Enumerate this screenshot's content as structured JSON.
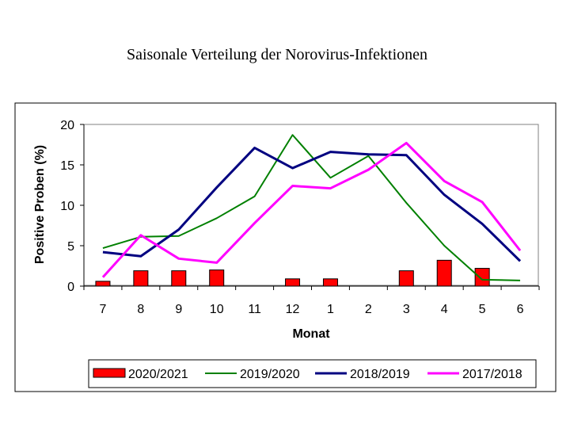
{
  "chart_data": {
    "type": "bar",
    "title": "Saisonale Verteilung der Norovirus-Infektionen",
    "xlabel": "Monat",
    "ylabel": "Positive Proben (%)",
    "ylim": [
      0,
      20
    ],
    "yticks": [
      0,
      5,
      10,
      15,
      20
    ],
    "grid": false,
    "legend_position": "bottom",
    "categories": [
      "7",
      "8",
      "9",
      "10",
      "11",
      "12",
      "1",
      "2",
      "3",
      "4",
      "5",
      "6"
    ],
    "series": [
      {
        "name": "2020/2021",
        "type": "bar",
        "color": "#ff0000",
        "values": [
          0.6,
          1.9,
          1.9,
          2.0,
          null,
          0.9,
          0.9,
          null,
          1.9,
          3.2,
          2.2,
          null
        ]
      },
      {
        "name": "2019/2020",
        "type": "line",
        "color": "#008000",
        "values": [
          4.7,
          6.1,
          6.2,
          8.4,
          11.1,
          18.7,
          13.4,
          16.1,
          10.3,
          5.0,
          0.8,
          0.7
        ]
      },
      {
        "name": "2018/2019",
        "type": "line",
        "color": "#000080",
        "values": [
          4.2,
          3.7,
          7.0,
          12.2,
          17.1,
          14.6,
          16.6,
          16.3,
          16.2,
          11.3,
          7.7,
          3.1
        ]
      },
      {
        "name": "2017/2018",
        "type": "line",
        "color": "#ff00ff",
        "values": [
          1.1,
          6.3,
          3.4,
          2.9,
          7.8,
          12.4,
          12.1,
          14.4,
          17.7,
          13.0,
          10.4,
          4.4
        ]
      }
    ]
  }
}
